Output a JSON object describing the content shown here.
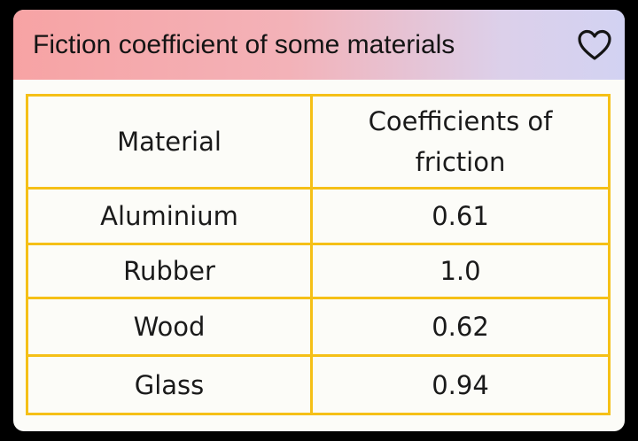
{
  "header": {
    "title": "Fiction coefficient of some materials",
    "favorite_icon": "heart-outline-icon"
  },
  "table": {
    "columns": [
      "Material",
      "Coefficients of friction"
    ],
    "rows": [
      {
        "material": "Aluminium",
        "coefficient": "0.61"
      },
      {
        "material": "Rubber",
        "coefficient": "1.0"
      },
      {
        "material": "Wood",
        "coefficient": "0.62"
      },
      {
        "material": "Glass",
        "coefficient": "0.94"
      }
    ]
  },
  "colors": {
    "border": "#f5c017",
    "header_gradient_start": "#f7a3a4",
    "header_gradient_end": "#d2d2f2",
    "card_background": "#fcfcf8"
  }
}
